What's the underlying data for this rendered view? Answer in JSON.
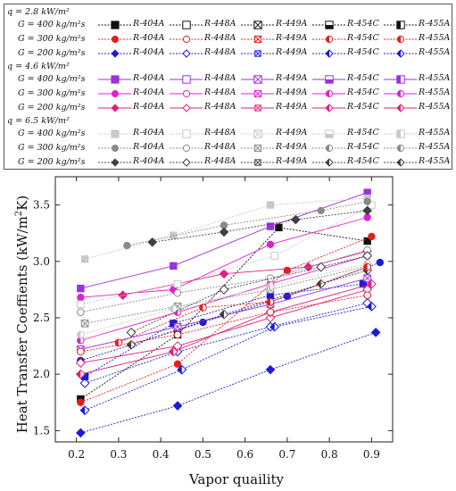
{
  "legend": {
    "groups": [
      {
        "title": "q = 2.8 kW/m²",
        "rows": [
          {
            "label": "G = 400 kg/m²s",
            "color": "#111111",
            "size": "large"
          },
          {
            "label": "G = 300 kg/m²s",
            "color": "#e02020",
            "size": "medium"
          },
          {
            "label": "G = 200 kg/m²s",
            "color": "#1a1ad8",
            "size": "small"
          }
        ]
      },
      {
        "title": "q = 4.6 kW/m²",
        "rows": [
          {
            "label": "G = 400 kg/m²s",
            "color": "#9b30e0",
            "size": "large"
          },
          {
            "label": "G = 300 kg/m²s",
            "color": "#e020d0",
            "size": "medium"
          },
          {
            "label": "G = 200 kg/m²s",
            "color": "#e0207a",
            "size": "small"
          }
        ]
      },
      {
        "title": "q = 6.5 kW/m²",
        "rows": [
          {
            "label": "G = 400 kg/m²s",
            "color": "#c8c8c8",
            "size": "large"
          },
          {
            "label": "G = 300 kg/m²s",
            "color": "#8a8a8a",
            "size": "medium"
          },
          {
            "label": "G = 200 kg/m²s",
            "color": "#404040",
            "size": "small"
          }
        ]
      }
    ],
    "refrigerants": [
      {
        "name": "R-404A",
        "marker": "square-filled"
      },
      {
        "name": "R-448A",
        "marker": "square-open"
      },
      {
        "name": "R-449A",
        "marker": "crossed"
      },
      {
        "name": "R-454C",
        "marker": "half-bottom"
      },
      {
        "name": "R-455A",
        "marker": "half-left"
      }
    ]
  },
  "chart_data": {
    "type": "scatter",
    "xlabel": "Vapor quaility",
    "ylabel": "Heat Transfer Coeffients (kW/m²K)",
    "xlim": [
      0.15,
      0.95
    ],
    "ylim": [
      1.4,
      3.75
    ],
    "xticks": [
      "0.2",
      "0.3",
      "0.4",
      "0.5",
      "0.6",
      "0.7",
      "0.8",
      "0.9"
    ],
    "yticks": [
      "1.5",
      "2.0",
      "2.5",
      "3.0",
      "3.5"
    ],
    "grid": false,
    "legend_position": "top",
    "series": [
      {
        "name": "q = 2.8, G = 400, R-404A",
        "color": "#111111",
        "marker": "square-filled",
        "x": [
          0.21,
          0.44,
          0.68,
          0.89
        ],
        "y": [
          1.78,
          2.35,
          3.3,
          3.18
        ]
      },
      {
        "name": "q = 2.8, G = 300, R-404A",
        "color": "#e02020",
        "marker": "circle-filled",
        "x": [
          0.21,
          0.44,
          0.7,
          0.9
        ],
        "y": [
          1.75,
          2.09,
          2.92,
          3.22
        ]
      },
      {
        "name": "q = 2.8, G = 200, R-404A",
        "color": "#1a1ad8",
        "marker": "diamond-filled",
        "x": [
          0.21,
          0.44,
          0.66,
          0.91
        ],
        "y": [
          1.48,
          1.72,
          2.04,
          2.37
        ]
      },
      {
        "name": "q = 2.8, G = 200, R-448A",
        "color": "#1a1ad8",
        "marker": "diamond-open",
        "x": [
          0.22,
          0.44,
          0.66,
          0.89
        ],
        "y": [
          1.92,
          2.2,
          2.42,
          2.63
        ]
      },
      {
        "name": "q = 2.8, G = 200, R-455A",
        "color": "#1a1ad8",
        "marker": "diamond-half",
        "x": [
          0.22,
          0.45,
          0.67,
          0.9
        ],
        "y": [
          1.68,
          2.04,
          2.42,
          2.6
        ]
      },
      {
        "name": "q = 2.8, G = 400, R-455A",
        "color": "#1a1ad8",
        "marker": "square-filled",
        "x": [
          0.22,
          0.43,
          0.66,
          0.88
        ],
        "y": [
          1.98,
          2.45,
          2.7,
          2.8
        ]
      },
      {
        "name": "q = 2.8, G = 200, R-449A",
        "color": "#1a1ad8",
        "marker": "circle-filled",
        "x": [
          0.21,
          0.5,
          0.7,
          0.92
        ],
        "y": [
          2.12,
          2.46,
          2.69,
          2.99
        ]
      },
      {
        "name": "q = 4.6, G = 400, R-404A",
        "color": "#9b30e0",
        "marker": "square-filled",
        "x": [
          0.21,
          0.43,
          0.66,
          0.89
        ],
        "y": [
          2.76,
          2.96,
          3.31,
          3.61
        ]
      },
      {
        "name": "q = 4.6, G = 300, R-404A",
        "color": "#e020d0",
        "marker": "circle-filled",
        "x": [
          0.21,
          0.43,
          0.66,
          0.89
        ],
        "y": [
          2.68,
          2.75,
          3.15,
          3.39
        ]
      },
      {
        "name": "q = 4.6, G = 300, R-455A",
        "color": "#e020d0",
        "marker": "circle-half",
        "x": [
          0.21,
          0.44,
          0.66,
          0.89
        ],
        "y": [
          2.3,
          2.55,
          2.8,
          3.05
        ]
      },
      {
        "name": "q = 4.6, G = 200, R-404A",
        "color": "#e0207a",
        "marker": "diamond-filled",
        "x": [
          0.31,
          0.55,
          0.75,
          0.89
        ],
        "y": [
          2.7,
          2.89,
          2.95,
          3.09
        ]
      },
      {
        "name": "q = 4.6, G = 200, R-448A",
        "color": "#e0207a",
        "marker": "diamond-open",
        "x": [
          0.21,
          0.44,
          0.66,
          0.89
        ],
        "y": [
          2.1,
          2.25,
          2.5,
          2.75
        ]
      },
      {
        "name": "q = 4.6, G = 200, R-455A",
        "color": "#e0207a",
        "marker": "diamond-half",
        "x": [
          0.21,
          0.43,
          0.66,
          0.9
        ],
        "y": [
          2.0,
          2.2,
          2.55,
          2.8
        ]
      },
      {
        "name": "q = 4.6, G = 400, R-449A",
        "color": "#9b30e0",
        "marker": "crossed",
        "x": [
          0.21,
          0.44,
          0.66,
          0.89
        ],
        "y": [
          2.22,
          2.42,
          2.62,
          2.85
        ]
      },
      {
        "name": "q = 6.5, G = 400, R-404A",
        "color": "#c8c8c8",
        "marker": "square-filled",
        "x": [
          0.22,
          0.43,
          0.66,
          0.89
        ],
        "y": [
          3.02,
          3.23,
          3.5,
          3.56
        ]
      },
      {
        "name": "q = 6.5, G = 400, R-448A",
        "color": "#c8c8c8",
        "marker": "square-open",
        "x": [
          0.21,
          0.44,
          0.67,
          0.9
        ],
        "y": [
          2.62,
          2.8,
          3.05,
          3.5
        ]
      },
      {
        "name": "q = 6.5, G = 300, R-404A",
        "color": "#8a8a8a",
        "marker": "circle-filled",
        "x": [
          0.32,
          0.55,
          0.78,
          0.89
        ],
        "y": [
          3.14,
          3.32,
          3.45,
          3.53
        ]
      },
      {
        "name": "q = 6.5, G = 300, R-448A",
        "color": "#8a8a8a",
        "marker": "circle-open",
        "x": [
          0.21,
          0.44,
          0.66,
          0.89
        ],
        "y": [
          2.55,
          2.72,
          2.85,
          3.1
        ]
      },
      {
        "name": "q = 6.5, G = 200, R-404A",
        "color": "#404040",
        "marker": "diamond-filled",
        "x": [
          0.38,
          0.55,
          0.72,
          0.89
        ],
        "y": [
          3.17,
          3.26,
          3.37,
          3.45
        ]
      },
      {
        "name": "q = 6.5, G = 200, R-448A",
        "color": "#404040",
        "marker": "diamond-open",
        "x": [
          0.33,
          0.55,
          0.78,
          0.89
        ],
        "y": [
          2.37,
          2.75,
          2.95,
          3.05
        ]
      },
      {
        "name": "q = 6.5, G = 200, R-455A",
        "color": "#404040",
        "marker": "diamond-half",
        "x": [
          0.33,
          0.55,
          0.78,
          0.89
        ],
        "y": [
          2.26,
          2.53,
          2.8,
          2.92
        ]
      },
      {
        "name": "q = 6.5, G = 300, R-449A",
        "color": "#8a8a8a",
        "marker": "crossed",
        "x": [
          0.22,
          0.44,
          0.66,
          0.89
        ],
        "y": [
          2.45,
          2.6,
          2.75,
          2.96
        ]
      },
      {
        "name": "q = 6.5, G = 400, R-454C",
        "color": "#c8c8c8",
        "marker": "circle-half",
        "x": [
          0.21,
          0.43,
          0.66,
          0.89
        ],
        "y": [
          2.35,
          2.58,
          2.78,
          2.98
        ]
      },
      {
        "name": "q = 2.8, G = 300, R-448A",
        "color": "#e02020",
        "marker": "circle-open",
        "x": [
          0.21,
          0.44,
          0.66,
          0.89
        ],
        "y": [
          2.2,
          2.35,
          2.55,
          2.7
        ]
      },
      {
        "name": "q = 2.8, G = 300, R-454C",
        "color": "#e02020",
        "marker": "circle-half",
        "x": [
          0.3,
          0.5,
          0.66,
          0.89
        ],
        "y": [
          2.28,
          2.59,
          2.64,
          2.95
        ]
      }
    ]
  }
}
